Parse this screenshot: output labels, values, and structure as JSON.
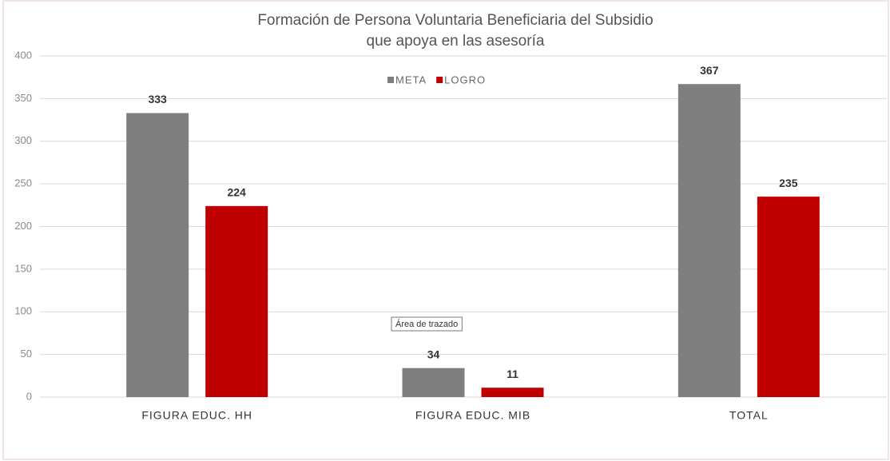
{
  "chart_data": {
    "type": "bar",
    "title": [
      "Formación de Persona Voluntaria Beneficiaria del Subsidio",
      "que apoya en las asesoría"
    ],
    "categories": [
      "FIGURA EDUC. HH",
      "FIGURA EDUC. MIB",
      "TOTAL"
    ],
    "series": [
      {
        "name": "META",
        "color": "#7f7f7f",
        "values": [
          333,
          34,
          367
        ]
      },
      {
        "name": "LOGRO",
        "color": "#c00000",
        "values": [
          224,
          11,
          235
        ]
      }
    ],
    "ylim": [
      0,
      400
    ],
    "yticks": [
      0,
      50,
      100,
      150,
      200,
      250,
      300,
      350,
      400
    ],
    "grid": true,
    "legend": "top",
    "annotation": "Área de trazado"
  }
}
